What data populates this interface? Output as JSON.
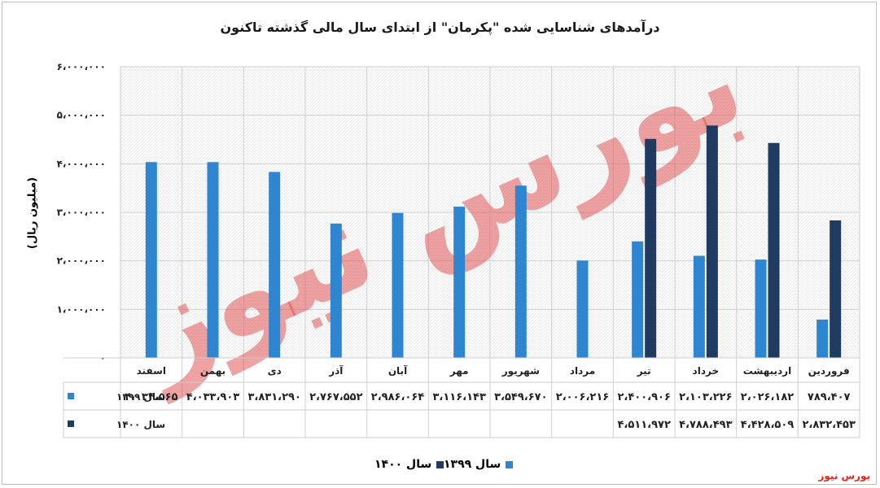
{
  "title": "درآمدهای شناسایی شده \"پکرمان\" از ابتدای سال مالی گذشته تاکنون",
  "source": "بورس نیوز",
  "watermark": "بورس نیوز",
  "colors": {
    "s1399": "#2e86d0",
    "s1400": "#1f3b60",
    "grid": "#d0d0d0",
    "watermark": "#e05555"
  },
  "chart_data": {
    "type": "bar",
    "ylabel": "(میلیون ریال)",
    "ylim": [
      0,
      6000000
    ],
    "yticks": [
      0,
      1000000,
      2000000,
      3000000,
      4000000,
      5000000,
      6000000
    ],
    "ytick_labels": [
      "۰",
      "۱،۰۰۰،۰۰۰",
      "۲،۰۰۰،۰۰۰",
      "۳،۰۰۰،۰۰۰",
      "۴،۰۰۰،۰۰۰",
      "۵،۰۰۰،۰۰۰",
      "۶،۰۰۰،۰۰۰"
    ],
    "categories": [
      "فروردین",
      "اردیبهشت",
      "خرداد",
      "تیر",
      "مرداد",
      "شهریور",
      "مهر",
      "آبان",
      "آذر",
      "دی",
      "بهمن",
      "اسفند"
    ],
    "series": [
      {
        "name": "سال ۱۳۹۹",
        "values": [
          789407,
          2026182,
          2103226,
          2400906,
          2006216,
          3549670,
          3116143,
          2986064,
          2767552,
          3831290,
          4033903,
          4034565
        ],
        "labels": [
          "۷۸۹،۴۰۷",
          "۲،۰۲۶،۱۸۲",
          "۲،۱۰۳،۲۲۶",
          "۲،۴۰۰،۹۰۶",
          "۲،۰۰۶،۲۱۶",
          "۳،۵۴۹،۶۷۰",
          "۳،۱۱۶،۱۴۳",
          "۲،۹۸۶،۰۶۴",
          "۲،۷۶۷،۵۵۲",
          "۳،۸۳۱،۲۹۰",
          "۴،۰۳۳،۹۰۳",
          "۴،۰۳۴،۵۶۵"
        ]
      },
      {
        "name": "سال ۱۴۰۰",
        "values": [
          2832453,
          4428509,
          4788493,
          4511972,
          null,
          null,
          null,
          null,
          null,
          null,
          null,
          null
        ],
        "labels": [
          "۲،۸۳۲،۴۵۳",
          "۴،۴۲۸،۵۰۹",
          "۴،۷۸۸،۴۹۳",
          "۴،۵۱۱،۹۷۲",
          "",
          "",
          "",
          "",
          "",
          "",
          "",
          ""
        ]
      }
    ],
    "grid": true,
    "legend": "bottom-center"
  }
}
